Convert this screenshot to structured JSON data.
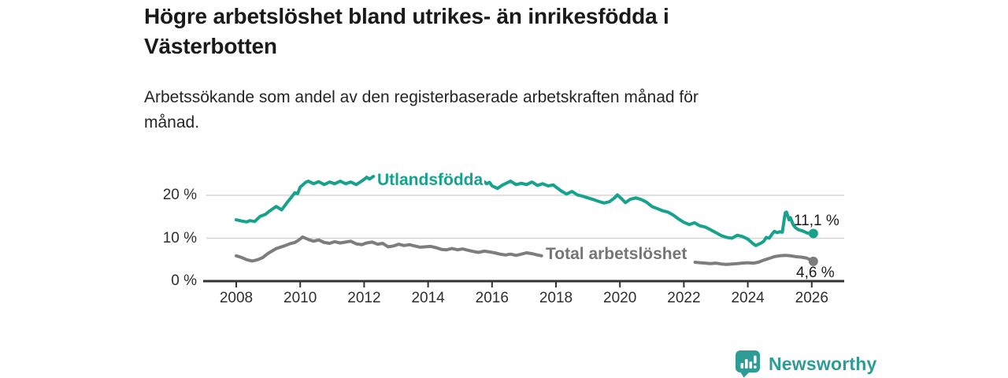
{
  "header": {
    "title_lines": [
      "Högre arbetslöshet bland utrikes- än inrikesfödda i",
      "Västerbotten"
    ],
    "subtitle_lines": [
      "Arbetssökande som andel av den registerbaserade arbetskraften månad för",
      "månad."
    ]
  },
  "chart_data": {
    "type": "line",
    "title": "Högre arbetslöshet bland utrikes- än inrikesfödda i Västerbotten",
    "subtitle": "Arbetssökande som andel av den registerbaserade arbetskraften månad för månad.",
    "x_unit": "year (monthly data)",
    "y_unit": "%",
    "xlim": [
      2007.05,
      2027.0
    ],
    "ylim": [
      0,
      26
    ],
    "grid": "horizontal",
    "legend_position": "inline-on-line",
    "axis_color": "#333333",
    "grid_color": "#d5d5d5",
    "x_ticks": [
      2008,
      2010,
      2012,
      2014,
      2016,
      2018,
      2020,
      2022,
      2024,
      2026
    ],
    "x_tick_labels": [
      "2008",
      "2010",
      "2012",
      "2014",
      "2016",
      "2018",
      "2020",
      "2022",
      "2024",
      "2026"
    ],
    "y_ticks": [
      {
        "value": 0,
        "label": "0 %"
      },
      {
        "value": 10,
        "label": "10 %"
      },
      {
        "value": 20,
        "label": "20 %"
      }
    ],
    "series": [
      {
        "name": "Utlandsfödda",
        "color": "#16a28c",
        "label_color": "#16a28c",
        "end_label": "11,1 %",
        "end_value": 11.1,
        "end_point": [
          2026.05,
          11.1
        ],
        "segments": [
          [
            [
              2008.0,
              14.3
            ],
            [
              2008.17,
              14.0
            ],
            [
              2008.33,
              13.8
            ],
            [
              2008.42,
              14.1
            ],
            [
              2008.58,
              13.9
            ],
            [
              2008.75,
              15.1
            ],
            [
              2008.92,
              15.6
            ],
            [
              2009.0,
              16.1
            ],
            [
              2009.17,
              17.0
            ],
            [
              2009.25,
              17.4
            ],
            [
              2009.42,
              16.6
            ],
            [
              2009.58,
              18.2
            ],
            [
              2009.75,
              19.8
            ],
            [
              2009.83,
              20.6
            ],
            [
              2009.92,
              20.4
            ],
            [
              2010.0,
              21.9
            ],
            [
              2010.17,
              23.0
            ],
            [
              2010.25,
              23.3
            ],
            [
              2010.42,
              22.7
            ],
            [
              2010.58,
              23.2
            ],
            [
              2010.75,
              22.5
            ],
            [
              2010.92,
              23.1
            ],
            [
              2011.08,
              22.7
            ],
            [
              2011.25,
              23.3
            ],
            [
              2011.42,
              22.7
            ],
            [
              2011.58,
              23.1
            ],
            [
              2011.75,
              22.5
            ],
            [
              2011.92,
              23.3
            ],
            [
              2012.0,
              23.7
            ],
            [
              2012.08,
              24.2
            ],
            [
              2012.17,
              23.8
            ],
            [
              2012.29,
              24.4
            ]
          ],
          [
            [
              2015.75,
              23.2
            ],
            [
              2015.83,
              22.7
            ],
            [
              2015.92,
              23.0
            ],
            [
              2016.0,
              22.2
            ],
            [
              2016.17,
              21.6
            ],
            [
              2016.33,
              22.4
            ],
            [
              2016.5,
              23.0
            ],
            [
              2016.58,
              23.3
            ],
            [
              2016.75,
              22.5
            ],
            [
              2016.92,
              22.8
            ],
            [
              2017.08,
              22.5
            ],
            [
              2017.25,
              23.1
            ],
            [
              2017.42,
              22.3
            ],
            [
              2017.58,
              22.7
            ],
            [
              2017.75,
              22.2
            ],
            [
              2017.92,
              22.4
            ],
            [
              2018.0,
              21.9
            ],
            [
              2018.17,
              21.0
            ],
            [
              2018.33,
              20.3
            ],
            [
              2018.5,
              20.9
            ],
            [
              2018.67,
              20.1
            ],
            [
              2018.83,
              19.8
            ],
            [
              2019.0,
              19.4
            ],
            [
              2019.17,
              19.0
            ],
            [
              2019.33,
              18.6
            ],
            [
              2019.5,
              18.2
            ],
            [
              2019.67,
              18.5
            ],
            [
              2019.83,
              19.4
            ],
            [
              2019.92,
              20.1
            ],
            [
              2020.08,
              19.0
            ],
            [
              2020.17,
              18.3
            ],
            [
              2020.33,
              19.1
            ],
            [
              2020.5,
              19.4
            ],
            [
              2020.67,
              19.0
            ],
            [
              2020.83,
              18.4
            ],
            [
              2021.0,
              17.4
            ],
            [
              2021.17,
              16.9
            ],
            [
              2021.33,
              16.4
            ],
            [
              2021.5,
              16.1
            ],
            [
              2021.67,
              15.4
            ],
            [
              2021.83,
              14.5
            ],
            [
              2022.0,
              13.7
            ],
            [
              2022.17,
              13.2
            ],
            [
              2022.33,
              13.6
            ],
            [
              2022.5,
              12.9
            ],
            [
              2022.67,
              12.6
            ],
            [
              2022.83,
              12.0
            ],
            [
              2023.0,
              11.3
            ],
            [
              2023.17,
              10.6
            ],
            [
              2023.33,
              10.2
            ],
            [
              2023.5,
              10.0
            ],
            [
              2023.67,
              10.7
            ],
            [
              2023.83,
              10.4
            ],
            [
              2024.0,
              9.8
            ],
            [
              2024.17,
              8.7
            ],
            [
              2024.25,
              8.3
            ],
            [
              2024.42,
              8.9
            ],
            [
              2024.5,
              9.3
            ],
            [
              2024.58,
              10.2
            ],
            [
              2024.67,
              10.0
            ],
            [
              2024.75,
              10.9
            ],
            [
              2024.83,
              11.6
            ],
            [
              2024.92,
              11.3
            ],
            [
              2025.0,
              11.5
            ],
            [
              2025.08,
              11.4
            ],
            [
              2025.17,
              15.9
            ],
            [
              2025.21,
              16.1
            ],
            [
              2025.29,
              14.3
            ],
            [
              2025.33,
              14.8
            ],
            [
              2025.42,
              13.1
            ],
            [
              2025.5,
              12.4
            ],
            [
              2025.58,
              12.0
            ],
            [
              2025.67,
              11.8
            ],
            [
              2025.75,
              11.6
            ],
            [
              2025.83,
              11.3
            ],
            [
              2025.92,
              11.1
            ],
            [
              2026.05,
              11.1
            ]
          ]
        ]
      },
      {
        "name": "Total arbetslöshet",
        "color": "#7d7d7d",
        "label_color": "#757575",
        "end_label": "4,6 %",
        "end_value": 4.6,
        "end_point": [
          2026.05,
          4.6
        ],
        "segments": [
          [
            [
              2008.0,
              5.9
            ],
            [
              2008.17,
              5.5
            ],
            [
              2008.33,
              5.0
            ],
            [
              2008.5,
              4.7
            ],
            [
              2008.67,
              5.0
            ],
            [
              2008.83,
              5.5
            ],
            [
              2009.0,
              6.5
            ],
            [
              2009.25,
              7.6
            ],
            [
              2009.5,
              8.2
            ],
            [
              2009.67,
              8.7
            ],
            [
              2009.83,
              9.0
            ],
            [
              2009.92,
              9.4
            ],
            [
              2010.08,
              10.3
            ],
            [
              2010.25,
              9.7
            ],
            [
              2010.42,
              9.3
            ],
            [
              2010.58,
              9.6
            ],
            [
              2010.75,
              9.0
            ],
            [
              2010.92,
              8.8
            ],
            [
              2011.08,
              9.2
            ],
            [
              2011.25,
              8.9
            ],
            [
              2011.42,
              9.1
            ],
            [
              2011.58,
              9.3
            ],
            [
              2011.75,
              8.7
            ],
            [
              2011.92,
              8.5
            ],
            [
              2012.08,
              8.9
            ],
            [
              2012.25,
              9.1
            ],
            [
              2012.42,
              8.6
            ],
            [
              2012.58,
              8.8
            ],
            [
              2012.75,
              8.0
            ],
            [
              2012.92,
              8.2
            ],
            [
              2013.08,
              8.6
            ],
            [
              2013.25,
              8.3
            ],
            [
              2013.42,
              8.5
            ],
            [
              2013.58,
              8.2
            ],
            [
              2013.75,
              7.9
            ],
            [
              2013.92,
              8.0
            ],
            [
              2014.08,
              8.1
            ],
            [
              2014.25,
              7.8
            ],
            [
              2014.42,
              7.4
            ],
            [
              2014.58,
              7.3
            ],
            [
              2014.75,
              7.6
            ],
            [
              2014.92,
              7.3
            ],
            [
              2015.08,
              7.5
            ],
            [
              2015.25,
              7.2
            ],
            [
              2015.42,
              6.9
            ],
            [
              2015.58,
              6.7
            ],
            [
              2015.75,
              7.0
            ],
            [
              2015.92,
              6.8
            ],
            [
              2016.08,
              6.6
            ],
            [
              2016.25,
              6.3
            ],
            [
              2016.42,
              6.1
            ],
            [
              2016.58,
              6.3
            ],
            [
              2016.75,
              6.0
            ],
            [
              2016.92,
              6.3
            ],
            [
              2017.08,
              6.6
            ],
            [
              2017.25,
              6.4
            ],
            [
              2017.42,
              6.1
            ],
            [
              2017.55,
              5.9
            ]
          ],
          [
            [
              2022.35,
              4.4
            ],
            [
              2022.5,
              4.3
            ],
            [
              2022.67,
              4.2
            ],
            [
              2022.83,
              4.1
            ],
            [
              2023.0,
              4.2
            ],
            [
              2023.17,
              4.0
            ],
            [
              2023.33,
              3.9
            ],
            [
              2023.5,
              4.0
            ],
            [
              2023.67,
              4.1
            ],
            [
              2023.83,
              4.2
            ],
            [
              2024.0,
              4.3
            ],
            [
              2024.17,
              4.2
            ],
            [
              2024.33,
              4.4
            ],
            [
              2024.5,
              4.9
            ],
            [
              2024.67,
              5.3
            ],
            [
              2024.83,
              5.7
            ],
            [
              2025.0,
              5.9
            ],
            [
              2025.17,
              6.0
            ],
            [
              2025.33,
              5.9
            ],
            [
              2025.5,
              5.7
            ],
            [
              2025.67,
              5.6
            ],
            [
              2025.83,
              5.4
            ],
            [
              2025.95,
              5.0
            ],
            [
              2026.05,
              4.6
            ]
          ]
        ]
      }
    ]
  },
  "footer": {
    "brand": "Newsworthy",
    "brand_color": "#2e9c94"
  }
}
